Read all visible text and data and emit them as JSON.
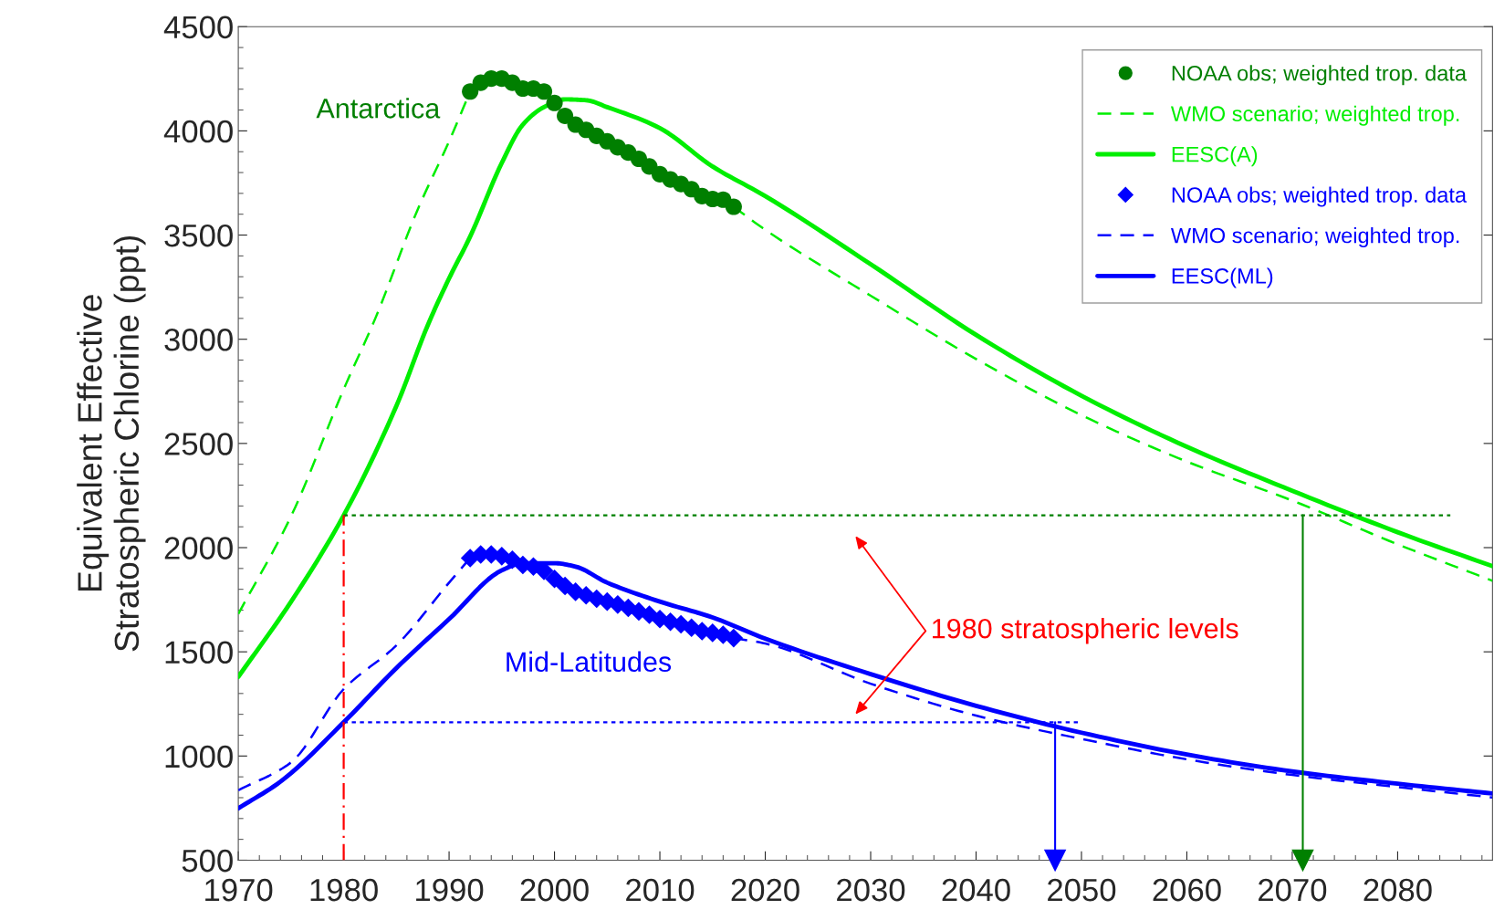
{
  "chart_data": {
    "type": "line",
    "ylabel": "Equivalent Effective\nStratospheric Chlorine (ppt)",
    "xlim": [
      1970,
      2089
    ],
    "xticks": [
      1970,
      1980,
      1990,
      2000,
      2010,
      2020,
      2030,
      2040,
      2050,
      2060,
      2070,
      2080
    ],
    "ylim": [
      500,
      4500
    ],
    "yticks": [
      500,
      1000,
      1500,
      2000,
      2500,
      3000,
      3500,
      4000,
      4500
    ],
    "grid": false,
    "legend": "top right",
    "series": [
      {
        "name": "NOAA obs; weighted trop. data",
        "type": "scatter",
        "marker": "circle",
        "color": "#007f00",
        "x": [
          1992,
          1993,
          1994,
          1995,
          1996,
          1997,
          1998,
          1999,
          2000,
          2001,
          2002,
          2003,
          2004,
          2005,
          2006,
          2007,
          2008,
          2009,
          2010,
          2011,
          2012,
          2013,
          2014,
          2015,
          2016,
          2017
        ],
        "values": [
          4189,
          4231,
          4251,
          4251,
          4231,
          4203,
          4203,
          4189,
          4134,
          4072,
          4030,
          4005,
          3976,
          3950,
          3921,
          3896,
          3866,
          3829,
          3792,
          3767,
          3745,
          3720,
          3687,
          3673,
          3670,
          3636
        ]
      },
      {
        "name": "WMO scenario; weighted trop.",
        "line_style": "dashed",
        "color": "#00ee00",
        "x": [
          1970,
          1975,
          1980,
          1983,
          1987,
          1990,
          1992,
          null,
          2017,
          2020,
          2030,
          2040,
          2050,
          2060,
          2070,
          2080,
          2089
        ],
        "values": [
          1682,
          2150,
          2760,
          3100,
          3620,
          3950,
          4189,
          null,
          3636,
          3525,
          3209,
          2905,
          2636,
          2413,
          2226,
          2016,
          1841
        ]
      },
      {
        "name": "EESC(A)",
        "line_style": "solid",
        "color": "#00ee00",
        "x": [
          1970,
          1975,
          1980,
          1985,
          1988,
          1990,
          1992,
          1995,
          1997,
          1999,
          2001,
          2003,
          2005,
          2010,
          2015,
          2020,
          2030,
          2040,
          2050,
          2060,
          2070,
          2080,
          2089
        ],
        "values": [
          1380,
          1740,
          2155,
          2680,
          3070,
          3292,
          3493,
          3846,
          4030,
          4114,
          4151,
          4147,
          4114,
          4013,
          3829,
          3687,
          3360,
          3021,
          2729,
          2484,
          2273,
          2074,
          1911
        ]
      },
      {
        "name": "NOAA obs; weighted trop. data",
        "type": "scatter",
        "marker": "diamond",
        "color": "#0000ff",
        "x": [
          1992,
          1993,
          1994,
          1995,
          1996,
          1997,
          1998,
          1999,
          2000,
          2001,
          2002,
          2003,
          2004,
          2005,
          2006,
          2007,
          2008,
          2009,
          2010,
          2011,
          2012,
          2013,
          2014,
          2015,
          2016,
          2017
        ],
        "values": [
          1950,
          1967,
          1967,
          1959,
          1942,
          1917,
          1909,
          1889,
          1850,
          1816,
          1788,
          1771,
          1755,
          1741,
          1727,
          1711,
          1694,
          1678,
          1657,
          1644,
          1632,
          1616,
          1599,
          1591,
          1582,
          1566
        ]
      },
      {
        "name": "WMO scenario; weighted trop.",
        "line_style": "dashed",
        "color": "#0000ff",
        "x": [
          1970,
          1975,
          1980,
          1985,
          1990,
          1992,
          null,
          2017,
          2020,
          2030,
          2040,
          2050,
          2060,
          2070,
          2080,
          2089
        ],
        "values": [
          836,
          969,
          1321,
          1531,
          1832,
          1950,
          null,
          1566,
          1540,
          1347,
          1194,
          1082,
          984,
          909,
          851,
          801
        ]
      },
      {
        "name": "EESC(ML)",
        "line_style": "solid",
        "color": "#0000ff",
        "x": [
          1970,
          1974,
          1980,
          1985,
          1990,
          1995,
          1997,
          2000,
          2002,
          2005,
          2010,
          2015,
          2020,
          2030,
          2040,
          2050,
          2060,
          2070,
          2080,
          2089
        ],
        "values": [
          749,
          877,
          1162,
          1422,
          1657,
          1891,
          1925,
          1925,
          1909,
          1832,
          1741,
          1665,
          1563,
          1393,
          1241,
          1112,
          1007,
          926,
          867,
          820
        ]
      },
      {
        "line_style": "dotted",
        "color": "#008000",
        "x": [
          1980,
          2085
        ],
        "values": [
          2155,
          2155
        ]
      },
      {
        "line_style": "dotted",
        "color": "#0000ff",
        "x": [
          1980,
          2050
        ],
        "values": [
          1162,
          1162
        ]
      },
      {
        "line_style": "dashdot",
        "color": "#ff0000",
        "x": [
          1980,
          1980
        ],
        "values": [
          500,
          2155
        ]
      },
      {
        "line_style": "solid",
        "marker": "triangle",
        "color": "#0000ff",
        "x": [
          2047.5,
          2047.5
        ],
        "values": [
          1162,
          500
        ]
      },
      {
        "line_style": "solid",
        "marker": "triangle",
        "color": "#008000",
        "x": [
          2071,
          2071
        ],
        "values": [
          2155,
          500
        ]
      }
    ],
    "annotations": [
      "Antarctica",
      "Mid-Latitudes",
      "1980 stratospheric levels"
    ]
  }
}
